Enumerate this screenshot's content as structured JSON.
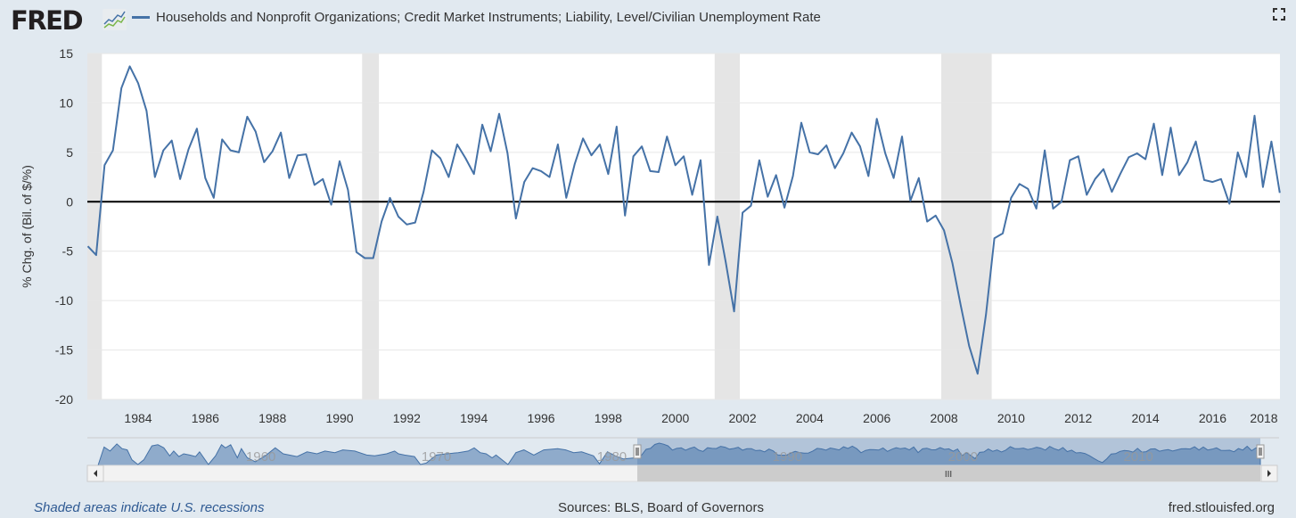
{
  "header": {
    "logo_text": "FRED",
    "legend_label": "Households and Nonprofit Organizations; Credit Market Instruments; Liability, Level/Civilian Unemployment Rate",
    "fullscreen_icon": "expand-icon"
  },
  "footer": {
    "recession_note": "Shaded areas indicate U.S. recessions",
    "sources": "Sources: BLS, Board of Governors",
    "site": "fred.stlouisfed.org"
  },
  "navigator": {
    "year_labels": [
      "1960",
      "1970",
      "1980",
      "1990",
      "2000",
      "2010"
    ],
    "selected_range": [
      "1982Q3",
      "2018Q1"
    ],
    "scrollbar_grip": "III"
  },
  "chart_data": {
    "type": "line",
    "title": "Households and Nonprofit Organizations; Credit Market Instruments; Liability, Level/Civilian Unemployment Rate",
    "ylabel": "% Chg. of (Bil. of $/%)",
    "xlabel": "",
    "ylim": [
      -20,
      15
    ],
    "yticks": [
      15,
      10,
      5,
      0,
      -5,
      -10,
      -15,
      -20
    ],
    "xticks": [
      "1984",
      "1986",
      "1988",
      "1990",
      "1992",
      "1994",
      "1996",
      "1998",
      "2000",
      "2002",
      "2004",
      "2006",
      "2008",
      "2010",
      "2012",
      "2014",
      "2016",
      "2018"
    ],
    "grid": true,
    "series_color": "#4572a7",
    "recession_color": "#e5e5e5",
    "recessions": [
      [
        "1981Q3",
        "1982Q4"
      ],
      [
        "1990Q3",
        "1991Q1"
      ],
      [
        "2001Q1",
        "2001Q4"
      ],
      [
        "2007Q4",
        "2009Q2"
      ]
    ],
    "x": [
      "1982Q3",
      "1982Q4",
      "1983Q1",
      "1983Q2",
      "1983Q3",
      "1983Q4",
      "1984Q1",
      "1984Q2",
      "1984Q3",
      "1984Q4",
      "1985Q1",
      "1985Q2",
      "1985Q3",
      "1985Q4",
      "1986Q1",
      "1986Q2",
      "1986Q3",
      "1986Q4",
      "1987Q1",
      "1987Q2",
      "1987Q3",
      "1987Q4",
      "1988Q1",
      "1988Q2",
      "1988Q3",
      "1988Q4",
      "1989Q1",
      "1989Q2",
      "1989Q3",
      "1989Q4",
      "1990Q1",
      "1990Q2",
      "1990Q3",
      "1990Q4",
      "1991Q1",
      "1991Q2",
      "1991Q3",
      "1991Q4",
      "1992Q1",
      "1992Q2",
      "1992Q3",
      "1992Q4",
      "1993Q1",
      "1993Q2",
      "1993Q3",
      "1993Q4",
      "1994Q1",
      "1994Q2",
      "1994Q3",
      "1994Q4",
      "1995Q1",
      "1995Q2",
      "1995Q3",
      "1995Q4",
      "1996Q1",
      "1996Q2",
      "1996Q3",
      "1996Q4",
      "1997Q1",
      "1997Q2",
      "1997Q3",
      "1997Q4",
      "1998Q1",
      "1998Q2",
      "1998Q3",
      "1998Q4",
      "1999Q1",
      "1999Q2",
      "1999Q3",
      "1999Q4",
      "2000Q1",
      "2000Q2",
      "2000Q3",
      "2000Q4",
      "2001Q1",
      "2001Q2",
      "2001Q3",
      "2001Q4",
      "2002Q1",
      "2002Q2",
      "2002Q3",
      "2002Q4",
      "2003Q1",
      "2003Q2",
      "2003Q3",
      "2003Q4",
      "2004Q1",
      "2004Q2",
      "2004Q3",
      "2004Q4",
      "2005Q1",
      "2005Q2",
      "2005Q3",
      "2005Q4",
      "2006Q1",
      "2006Q2",
      "2006Q3",
      "2006Q4",
      "2007Q1",
      "2007Q2",
      "2007Q3",
      "2007Q4",
      "2008Q1",
      "2008Q2",
      "2008Q3",
      "2008Q4",
      "2009Q1",
      "2009Q2",
      "2009Q3",
      "2009Q4",
      "2010Q1",
      "2010Q2",
      "2010Q3",
      "2010Q4",
      "2011Q1",
      "2011Q2",
      "2011Q3",
      "2011Q4",
      "2012Q1",
      "2012Q2",
      "2012Q3",
      "2012Q4",
      "2013Q1",
      "2013Q2",
      "2013Q3",
      "2013Q4",
      "2014Q1",
      "2014Q2",
      "2014Q3",
      "2014Q4",
      "2015Q1",
      "2015Q2",
      "2015Q3",
      "2015Q4",
      "2016Q1",
      "2016Q2",
      "2016Q3",
      "2016Q4",
      "2017Q1",
      "2017Q2",
      "2017Q3",
      "2017Q4",
      "2018Q1"
    ],
    "values": [
      -4.5,
      -5.4,
      3.7,
      5.2,
      11.5,
      13.7,
      12.0,
      9.2,
      2.5,
      5.2,
      6.2,
      2.3,
      5.3,
      7.4,
      2.4,
      0.4,
      6.3,
      5.2,
      5.0,
      8.6,
      7.1,
      4.0,
      5.1,
      7.0,
      2.4,
      4.7,
      4.8,
      1.7,
      2.3,
      -0.3,
      4.1,
      1.2,
      -5.1,
      -5.7,
      -5.7,
      -2.0,
      0.4,
      -1.5,
      -2.3,
      -2.1,
      1.0,
      5.2,
      4.4,
      2.5,
      5.8,
      4.4,
      2.8,
      7.8,
      5.1,
      8.9,
      4.9,
      -1.7,
      2.0,
      3.4,
      3.1,
      2.5,
      5.8,
      0.4,
      3.8,
      6.4,
      4.7,
      5.8,
      2.8,
      7.6,
      -1.4,
      4.6,
      5.6,
      3.1,
      3.0,
      6.6,
      3.7,
      4.6,
      0.7,
      4.2,
      -6.4,
      -1.5,
      -6.1,
      -11.1,
      -1.1,
      -0.4,
      4.2,
      0.5,
      2.7,
      -0.6,
      2.6,
      8.0,
      5.0,
      4.8,
      5.7,
      3.4,
      4.9,
      7.0,
      5.6,
      2.6,
      8.4,
      4.9,
      2.4,
      6.6,
      0.1,
      2.4,
      -2.0,
      -1.4,
      -2.9,
      -6.2,
      -10.5,
      -14.6,
      -17.4,
      -11.4,
      -3.7,
      -3.2,
      0.4,
      1.8,
      1.3,
      -0.7,
      5.2,
      -0.7,
      0.0,
      4.2,
      4.6,
      0.7,
      2.3,
      3.3,
      1.0,
      2.8,
      4.5,
      4.9,
      4.3,
      7.9,
      2.7,
      7.5,
      2.7,
      4.0,
      6.1,
      2.2,
      2.0,
      2.3,
      -0.2,
      5.0,
      2.5,
      8.7,
      1.5,
      6.1,
      0.9
    ]
  }
}
